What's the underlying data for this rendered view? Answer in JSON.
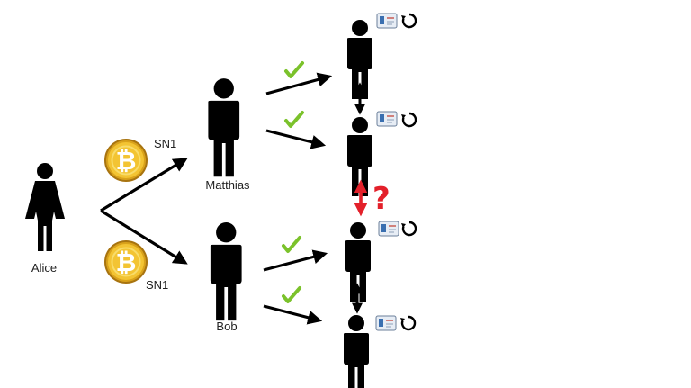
{
  "people": {
    "alice": "Alice",
    "matthias": "Matthias",
    "bob": "Bob"
  },
  "coins": {
    "top_serial": "SN1",
    "bottom_serial": "SN1",
    "symbol": "₿"
  },
  "conflict_mark": "?",
  "icons": {
    "coin": "bitcoin-coin-icon",
    "check": "checkmark-icon",
    "ledger": "ledger-book-icon",
    "refresh": "refresh-icon"
  },
  "colors": {
    "person": "#000000",
    "check": "#7bc22b",
    "conflict": "#e3202a",
    "coin": "#f3c433"
  }
}
